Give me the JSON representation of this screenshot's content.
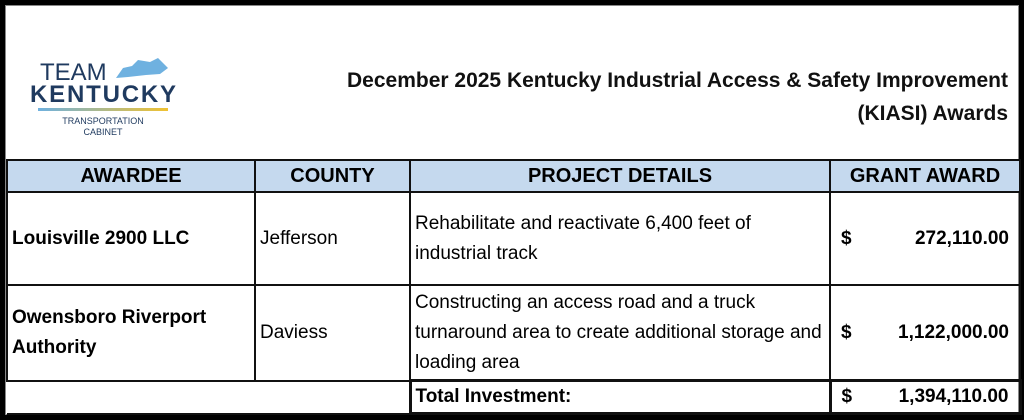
{
  "logo": {
    "line1": "TEAM",
    "line2": "KENTUCKY",
    "line3": "TRANSPORTATION",
    "line4": "CABINET",
    "colors": {
      "navy": "#1f3a5f",
      "blue": "#6fb1e0",
      "yellow": "#f0c232"
    }
  },
  "title": {
    "line1": "December 2025 Kentucky Industrial Access & Safety Improvement",
    "line2": "(KIASI) Awards"
  },
  "table": {
    "headers": [
      "AWARDEE",
      "COUNTY",
      "PROJECT DETAILS",
      "GRANT AWARD"
    ],
    "header_color": "#c5d9ee",
    "rows": [
      {
        "awardee": "Louisville 2900 LLC",
        "county": "Jefferson",
        "details": "Rehabilitate and reactivate 6,400 feet of industrial track",
        "currency": "$",
        "amount": "272,110.00"
      },
      {
        "awardee": "Owensboro Riverport Authority",
        "county": "Daviess",
        "details": "Constructing an access road and a truck turnaround area to create additional storage and loading area",
        "currency": "$",
        "amount": "1,122,000.00"
      }
    ],
    "total": {
      "label": "Total Investment:",
      "currency": "$",
      "amount": "1,394,110.00"
    }
  }
}
